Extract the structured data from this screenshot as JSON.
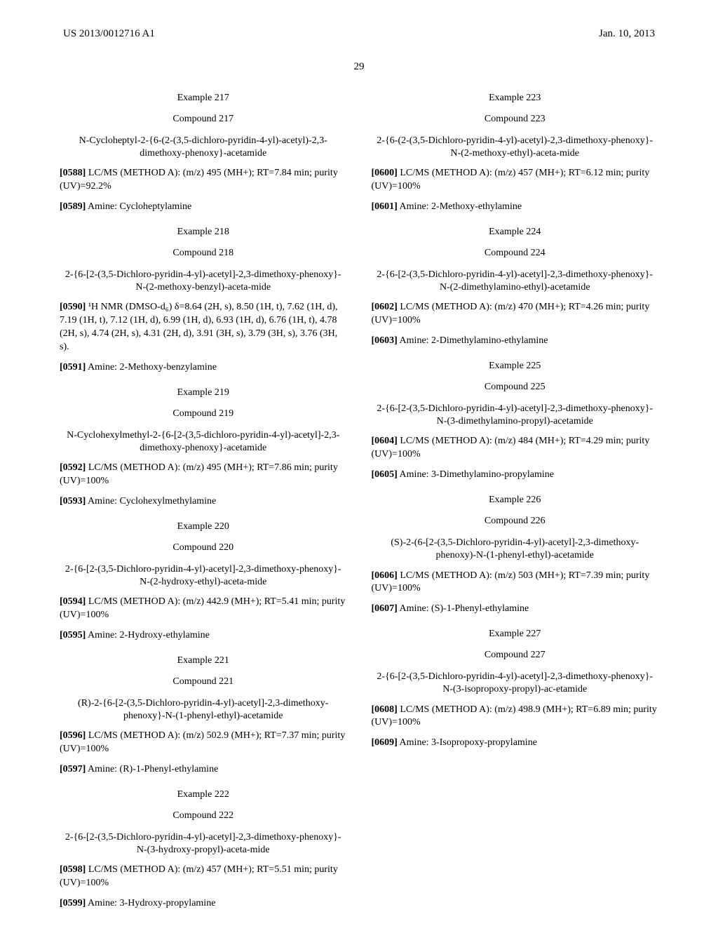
{
  "header": {
    "left": "US 2013/0012716 A1",
    "right": "Jan. 10, 2013"
  },
  "pagenum": "29",
  "left": {
    "e217": {
      "ex": "Example 217",
      "cmp": "Compound 217",
      "title": "N-Cycloheptyl-2-{6-(2-(3,5-dichloro-pyridin-4-yl)-acetyl)-2,3-dimethoxy-phenoxy}-acetamide",
      "p1_label": "[0588]",
      "p1_text": "    LC/MS (METHOD A): (m/z) 495 (MH+); RT=7.84 min; purity (UV)=92.2%",
      "p2_label": "[0589]",
      "p2_text": "    Amine: Cycloheptylamine"
    },
    "e218": {
      "ex": "Example 218",
      "cmp": "Compound 218",
      "title": "2-{6-[2-(3,5-Dichloro-pyridin-4-yl)-acetyl]-2,3-dimethoxy-phenoxy}-N-(2-methoxy-benzyl)-aceta-mide",
      "p1_label": "[0590]",
      "p1_text": "    ¹H NMR (DMSO-d₆) δ=8.64 (2H, s), 8.50 (1H, t), 7.62 (1H, d), 7.19 (1H, t), 7.12 (1H, d), 6.99 (1H, d), 6.93 (1H, d), 6.76 (1H, t), 4.78 (2H, s), 4.74 (2H, s), 4.31 (2H, d), 3.91 (3H, s), 3.79 (3H, s), 3.76 (3H, s).",
      "p2_label": "[0591]",
      "p2_text": "    Amine: 2-Methoxy-benzylamine"
    },
    "e219": {
      "ex": "Example 219",
      "cmp": "Compound 219",
      "title": "N-Cyclohexylmethyl-2-{6-[2-(3,5-dichloro-pyridin-4-yl)-acetyl]-2,3-dimethoxy-phenoxy}-acetamide",
      "p1_label": "[0592]",
      "p1_text": "    LC/MS (METHOD A): (m/z) 495 (MH+); RT=7.86 min; purity (UV)=100%",
      "p2_label": "[0593]",
      "p2_text": "    Amine: Cyclohexylmethylamine"
    },
    "e220": {
      "ex": "Example 220",
      "cmp": "Compound 220",
      "title": "2-{6-[2-(3,5-Dichloro-pyridin-4-yl)-acetyl]-2,3-dimethoxy-phenoxy}-N-(2-hydroxy-ethyl)-aceta-mide",
      "p1_label": "[0594]",
      "p1_text": "    LC/MS (METHOD A): (m/z) 442.9 (MH+); RT=5.41 min; purity (UV)=100%",
      "p2_label": "[0595]",
      "p2_text": "    Amine: 2-Hydroxy-ethylamine"
    },
    "e221": {
      "ex": "Example 221",
      "cmp": "Compound 221",
      "title": "(R)-2-{6-[2-(3,5-Dichloro-pyridin-4-yl)-acetyl]-2,3-dimethoxy-phenoxy}-N-(1-phenyl-ethyl)-acetamide",
      "p1_label": "[0596]",
      "p1_text": "    LC/MS (METHOD A): (m/z) 502.9 (MH+); RT=7.37 min; purity (UV)=100%",
      "p2_label": "[0597]",
      "p2_text": "    Amine: (R)-1-Phenyl-ethylamine"
    },
    "e222": {
      "ex": "Example 222",
      "cmp": "Compound 222",
      "title": "2-{6-[2-(3,5-Dichloro-pyridin-4-yl)-acetyl]-2,3-dimethoxy-phenoxy}-N-(3-hydroxy-propyl)-aceta-mide",
      "p1_label": "[0598]",
      "p1_text": "    LC/MS (METHOD A): (m/z) 457 (MH+); RT=5.51 min; purity (UV)=100%",
      "p2_label": "[0599]",
      "p2_text": "    Amine: 3-Hydroxy-propylamine"
    }
  },
  "right": {
    "e223": {
      "ex": "Example 223",
      "cmp": "Compound 223",
      "title": "2-{6-(2-(3,5-Dichloro-pyridin-4-yl)-acetyl)-2,3-dimethoxy-phenoxy}-N-(2-methoxy-ethyl)-aceta-mide",
      "p1_label": "[0600]",
      "p1_text": "    LC/MS (METHOD A): (m/z) 457 (MH+); RT=6.12 min; purity (UV)=100%",
      "p2_label": "[0601]",
      "p2_text": "    Amine: 2-Methoxy-ethylamine"
    },
    "e224": {
      "ex": "Example 224",
      "cmp": "Compound 224",
      "title": "2-{6-[2-(3,5-Dichloro-pyridin-4-yl)-acetyl]-2,3-dimethoxy-phenoxy}-N-(2-dimethylamino-ethyl)-acetamide",
      "p1_label": "[0602]",
      "p1_text": "    LC/MS (METHOD A): (m/z) 470 (MH+); RT=4.26 min; purity (UV)=100%",
      "p2_label": "[0603]",
      "p2_text": "    Amine: 2-Dimethylamino-ethylamine"
    },
    "e225": {
      "ex": "Example 225",
      "cmp": "Compound 225",
      "title": "2-{6-[2-(3,5-Dichloro-pyridin-4-yl)-acetyl]-2,3-dimethoxy-phenoxy}-N-(3-dimethylamino-propyl)-acetamide",
      "p1_label": "[0604]",
      "p1_text": "    LC/MS (METHOD A): (m/z) 484 (MH+); RT=4.29 min; purity (UV)=100%",
      "p2_label": "[0605]",
      "p2_text": "    Amine: 3-Dimethylamino-propylamine"
    },
    "e226": {
      "ex": "Example 226",
      "cmp": "Compound 226",
      "title": "(S)-2-(6-[2-(3,5-Dichloro-pyridin-4-yl)-acetyl]-2,3-dimethoxy-phenoxy)-N-(1-phenyl-ethyl)-acetamide",
      "p1_label": "[0606]",
      "p1_text": "    LC/MS (METHOD A): (m/z) 503 (MH+); RT=7.39 min; purity (UV)=100%",
      "p2_label": "[0607]",
      "p2_text": "    Amine: (S)-1-Phenyl-ethylamine"
    },
    "e227": {
      "ex": "Example 227",
      "cmp": "Compound 227",
      "title": "2-{6-[2-(3,5-Dichloro-pyridin-4-yl)-acetyl]-2,3-dimethoxy-phenoxy}-N-(3-isopropoxy-propyl)-ac-etamide",
      "p1_label": "[0608]",
      "p1_text": "    LC/MS (METHOD A): (m/z) 498.9 (MH+); RT=6.89 min; purity (UV)=100%",
      "p2_label": "[0609]",
      "p2_text": "    Amine: 3-Isopropoxy-propylamine"
    }
  }
}
